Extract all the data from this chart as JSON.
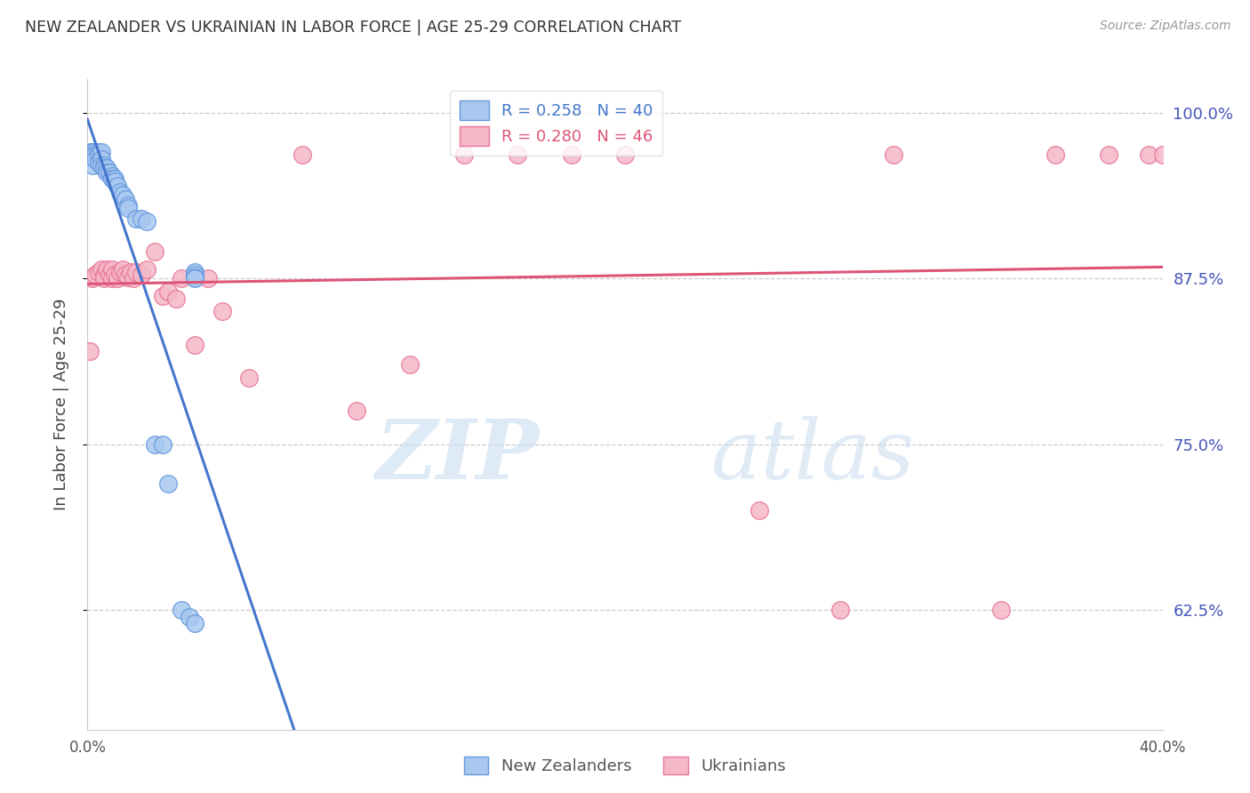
{
  "title": "NEW ZEALANDER VS UKRAINIAN IN LABOR FORCE | AGE 25-29 CORRELATION CHART",
  "source": "Source: ZipAtlas.com",
  "ylabel": "In Labor Force | Age 25-29",
  "x_min": 0.0,
  "x_max": 0.4,
  "y_min": 0.535,
  "y_max": 1.025,
  "y_ticks": [
    0.625,
    0.75,
    0.875,
    1.0
  ],
  "y_tick_labels": [
    "62.5%",
    "75.0%",
    "87.5%",
    "100.0%"
  ],
  "x_ticks": [
    0.0,
    0.05,
    0.1,
    0.15,
    0.2,
    0.25,
    0.3,
    0.35,
    0.4
  ],
  "nz_color": "#A8C8F0",
  "uk_color": "#F5B8C8",
  "nz_edge_color": "#6699DD",
  "uk_edge_color": "#E87898",
  "nz_line_color": "#4477CC",
  "uk_line_color": "#DD5577",
  "background_color": "#ffffff",
  "grid_color": "#cccccc",
  "watermark_zip": "ZIP",
  "watermark_atlas": "atlas",
  "nz_x": [
    0.001,
    0.002,
    0.002,
    0.003,
    0.003,
    0.003,
    0.004,
    0.004,
    0.004,
    0.005,
    0.005,
    0.005,
    0.006,
    0.006,
    0.007,
    0.007,
    0.008,
    0.009,
    0.009,
    0.01,
    0.01,
    0.011,
    0.012,
    0.013,
    0.014,
    0.015,
    0.015,
    0.018,
    0.02,
    0.022,
    0.025,
    0.028,
    0.03,
    0.035,
    0.038,
    0.04,
    0.04,
    0.04,
    0.04,
    0.04
  ],
  "nz_y": [
    0.97,
    0.97,
    0.96,
    0.97,
    0.968,
    0.965,
    0.97,
    0.968,
    0.962,
    0.97,
    0.965,
    0.96,
    0.96,
    0.958,
    0.958,
    0.955,
    0.955,
    0.952,
    0.95,
    0.95,
    0.948,
    0.945,
    0.94,
    0.938,
    0.935,
    0.93,
    0.928,
    0.92,
    0.92,
    0.918,
    0.75,
    0.75,
    0.72,
    0.625,
    0.62,
    0.615,
    0.88,
    0.878,
    0.876,
    0.875
  ],
  "uk_x": [
    0.001,
    0.002,
    0.003,
    0.004,
    0.005,
    0.006,
    0.006,
    0.007,
    0.008,
    0.009,
    0.009,
    0.01,
    0.011,
    0.012,
    0.013,
    0.014,
    0.015,
    0.016,
    0.017,
    0.018,
    0.02,
    0.022,
    0.025,
    0.028,
    0.03,
    0.033,
    0.035,
    0.04,
    0.045,
    0.05,
    0.06,
    0.08,
    0.1,
    0.12,
    0.14,
    0.16,
    0.18,
    0.2,
    0.25,
    0.28,
    0.3,
    0.34,
    0.36,
    0.38,
    0.395,
    0.4
  ],
  "uk_y": [
    0.82,
    0.875,
    0.878,
    0.88,
    0.882,
    0.878,
    0.875,
    0.882,
    0.878,
    0.882,
    0.875,
    0.878,
    0.875,
    0.88,
    0.882,
    0.878,
    0.876,
    0.88,
    0.875,
    0.88,
    0.878,
    0.882,
    0.895,
    0.862,
    0.865,
    0.86,
    0.875,
    0.825,
    0.875,
    0.85,
    0.8,
    0.968,
    0.775,
    0.81,
    0.968,
    0.968,
    0.968,
    0.968,
    0.7,
    0.625,
    0.968,
    0.625,
    0.968,
    0.968,
    0.968,
    0.968
  ]
}
